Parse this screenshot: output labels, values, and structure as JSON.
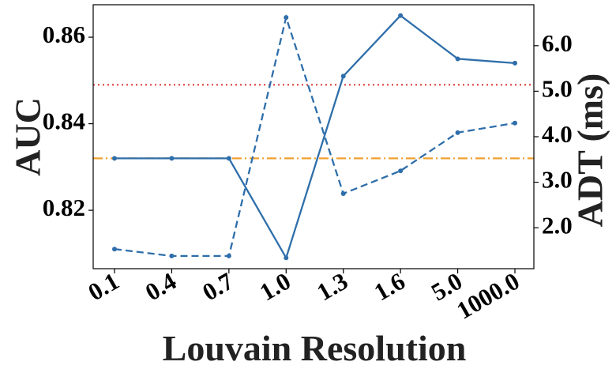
{
  "chart_data": {
    "type": "line",
    "xlabel": "Louvain Resolution",
    "ylabel_left": "AUC",
    "ylabel_right": "ADT (ms)",
    "categories": [
      "0.1",
      "0.4",
      "0.7",
      "1.0",
      "1.3",
      "1.6",
      "5.0",
      "1000.0"
    ],
    "ylim_left": [
      0.8065,
      0.8675
    ],
    "ylim_right": [
      1.1,
      6.9
    ],
    "yticks_left": [
      "0.82",
      "0.84",
      "0.86"
    ],
    "yticks_right": [
      "2.0",
      "3.0",
      "4.0",
      "5.0",
      "6.0"
    ],
    "grid": false,
    "series": [
      {
        "axis": "left",
        "style": "solid",
        "color": "#2e6eaa",
        "values": [
          0.832,
          0.832,
          0.832,
          0.809,
          0.851,
          0.865,
          0.855,
          0.854
        ]
      },
      {
        "axis": "right",
        "style": "dashed",
        "color": "#2e6eaa",
        "values": [
          1.53,
          1.38,
          1.38,
          6.62,
          2.75,
          3.25,
          4.09,
          4.3
        ]
      }
    ],
    "reference_lines": [
      {
        "axis": "left",
        "value": 0.849,
        "style": "dotted",
        "color": "#e0413c"
      },
      {
        "axis": "left",
        "value": 0.832,
        "style": "dashdot",
        "color": "#f0a030"
      }
    ]
  }
}
